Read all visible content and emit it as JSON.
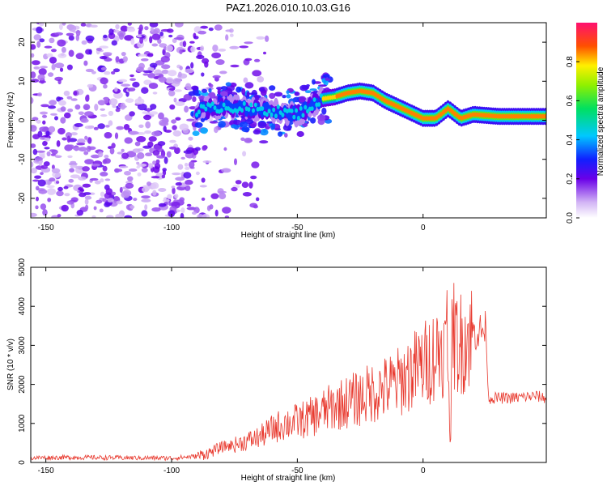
{
  "title": "PAZ1.2026.010.10.03.G16",
  "chart_data": [
    {
      "type": "heatmap",
      "title": "PAZ1.2026.010.10.03.G16",
      "xlabel": "Height of straight line (km)",
      "ylabel": "Frequency (Hz)",
      "xlim": [
        -156,
        49
      ],
      "ylim": [
        -25,
        25
      ],
      "x_ticks": [
        -150,
        -100,
        -50,
        0
      ],
      "y_ticks": [
        -20,
        -10,
        0,
        10,
        20
      ],
      "colorbar": {
        "label": "Normalized spectral amplitude",
        "range": [
          0,
          1
        ],
        "ticks": [
          "0.0",
          "0.2",
          "0.4",
          "0.6",
          "0.8"
        ]
      },
      "ridge": {
        "x": [
          -90,
          -80,
          -70,
          -60,
          -50,
          -45,
          -40,
          -35,
          -30,
          -25,
          -20,
          -15,
          -10,
          -5,
          0,
          5,
          10,
          15,
          20,
          30,
          40,
          49
        ],
        "freq": [
          2.5,
          3.5,
          3,
          2.5,
          1.5,
          3.5,
          5.5,
          6,
          7,
          7.5,
          7,
          5,
          3.5,
          2,
          0.5,
          0.5,
          3,
          0.5,
          1.5,
          1,
          1,
          1
        ]
      }
    },
    {
      "type": "line",
      "xlabel": "Height of straight line (km)",
      "ylabel": "SNR (10 * v/v)",
      "xlim": [
        -156,
        49
      ],
      "ylim": [
        0,
        5000
      ],
      "x_ticks": [
        -150,
        -100,
        -50,
        0
      ],
      "y_ticks": [
        0,
        1000,
        2000,
        3000,
        4000,
        5000
      ],
      "series": [
        {
          "name": "SNR",
          "color": "#e8392e",
          "x": [
            -156,
            -140,
            -120,
            -100,
            -90,
            -85,
            -80,
            -75,
            -70,
            -65,
            -60,
            -55,
            -50,
            -45,
            -40,
            -35,
            -30,
            -25,
            -20,
            -15,
            -10,
            -5,
            0,
            5,
            8,
            10,
            11,
            12,
            14,
            18,
            22,
            25,
            26,
            28,
            35,
            45,
            49
          ],
          "y": [
            120,
            130,
            120,
            110,
            160,
            250,
            400,
            450,
            550,
            650,
            850,
            1000,
            1050,
            1150,
            1300,
            1450,
            1550,
            1650,
            1800,
            1900,
            2050,
            2300,
            2500,
            2800,
            3000,
            2500,
            3100,
            3300,
            3000,
            3250,
            3350,
            3400,
            1650,
            1650,
            1650,
            1700,
            1650
          ]
        }
      ]
    }
  ]
}
